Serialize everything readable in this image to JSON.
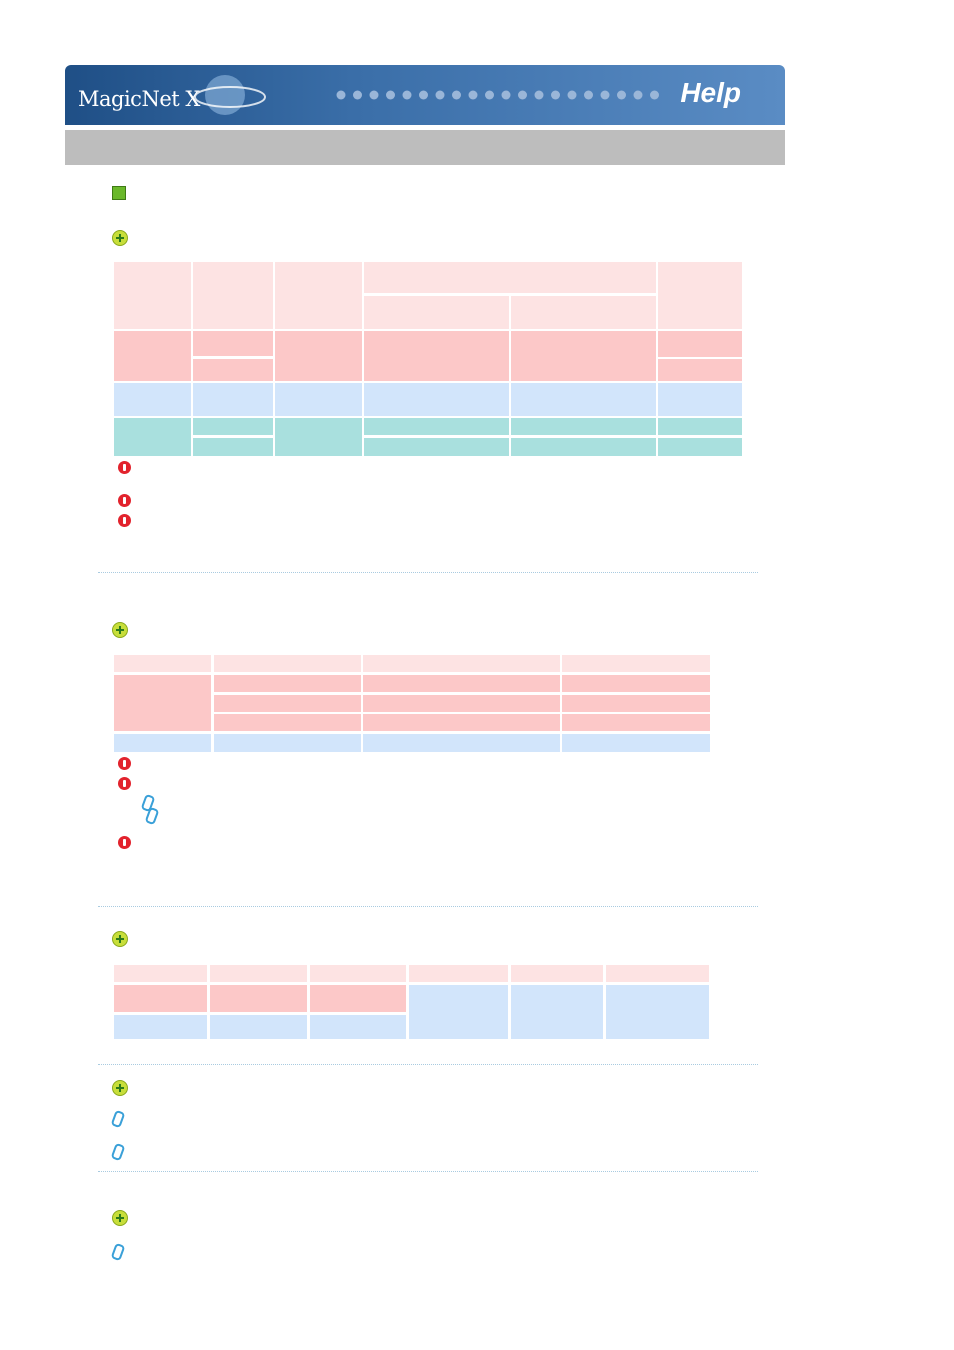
{
  "header": {
    "logo": "MagicNet X",
    "title": "Help"
  }
}
